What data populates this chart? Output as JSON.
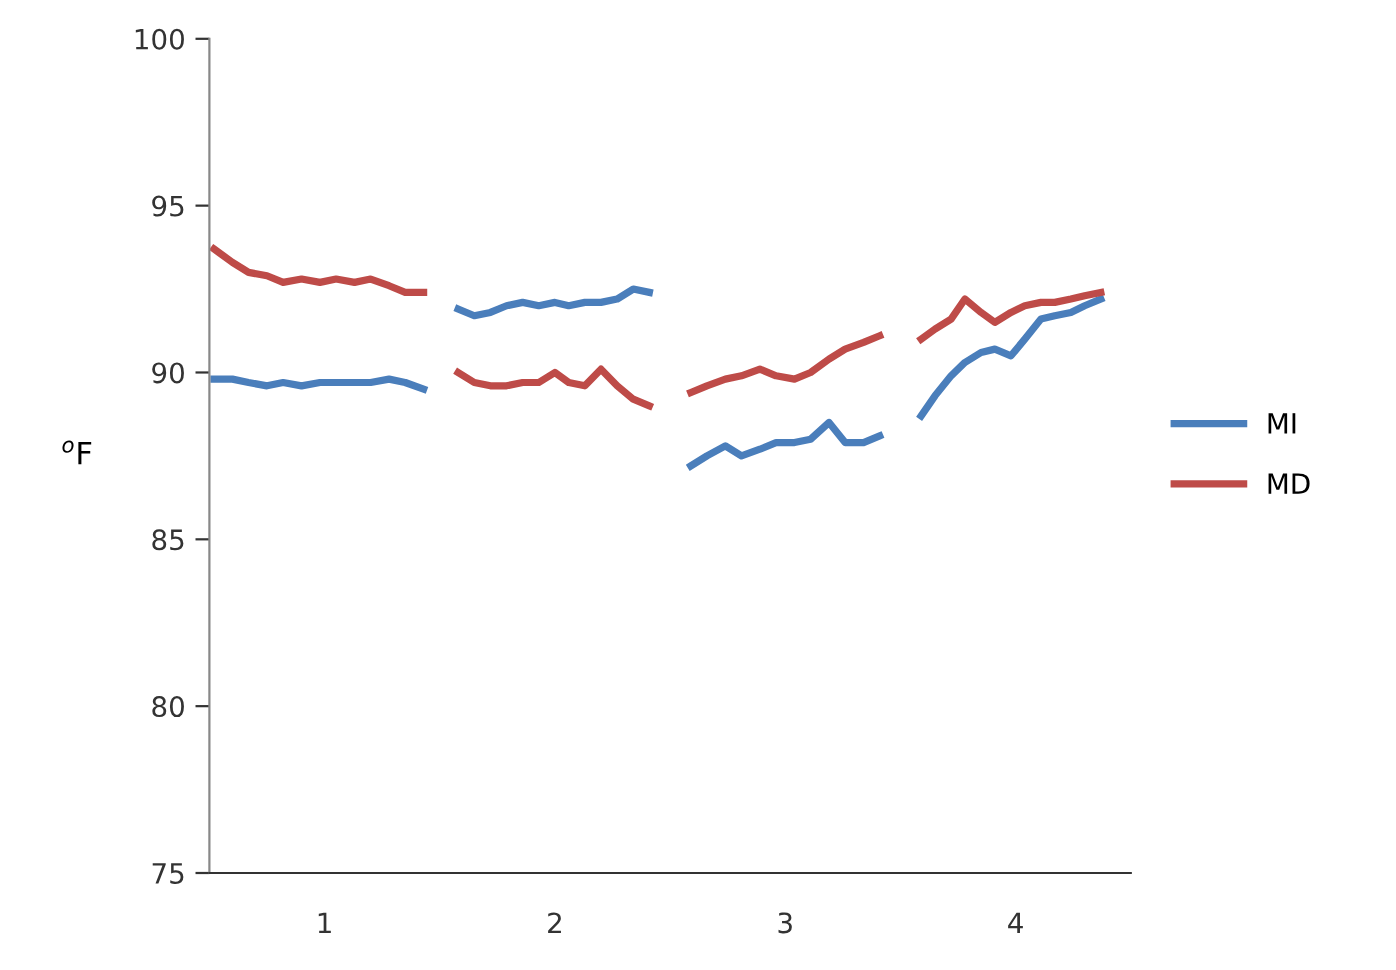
{
  "chart_data": {
    "type": "line",
    "ylabel": "$^{o}$F",
    "x": [
      0.52,
      0.6,
      0.67,
      0.75,
      0.82,
      0.9,
      0.98,
      1.05,
      1.13,
      1.2,
      1.28,
      1.35,
      1.43,
      1.5,
      1.58,
      1.65,
      1.72,
      1.79,
      1.86,
      1.93,
      2.0,
      2.06,
      2.13,
      2.2,
      2.27,
      2.34,
      2.41,
      2.5,
      2.59,
      2.66,
      2.74,
      2.81,
      2.89,
      2.96,
      3.04,
      3.11,
      3.19,
      3.26,
      3.34,
      3.41,
      3.5,
      3.59,
      3.65,
      3.72,
      3.78,
      3.85,
      3.91,
      3.98,
      4.04,
      4.11,
      4.17,
      4.24,
      4.3,
      4.37
    ],
    "series": [
      {
        "name": "MI",
        "color": "#4a7ebb",
        "values": [
          89.8,
          89.8,
          89.7,
          89.6,
          89.7,
          89.6,
          89.7,
          89.7,
          89.7,
          89.7,
          89.8,
          89.7,
          89.5,
          null,
          91.9,
          91.7,
          91.8,
          92.0,
          92.1,
          92.0,
          92.1,
          92.0,
          92.1,
          92.1,
          92.2,
          92.5,
          92.4,
          null,
          87.2,
          87.5,
          87.8,
          87.5,
          87.7,
          87.9,
          87.9,
          88.0,
          88.5,
          87.9,
          87.9,
          88.1,
          null,
          88.7,
          89.3,
          89.9,
          90.3,
          90.6,
          90.7,
          90.5,
          91.0,
          91.6,
          91.7,
          91.8,
          92.0,
          92.2
        ]
      },
      {
        "name": "MD",
        "color": "#be4b48",
        "values": [
          93.7,
          93.3,
          93.0,
          92.9,
          92.7,
          92.8,
          92.7,
          92.8,
          92.7,
          92.8,
          92.6,
          92.4,
          92.4,
          null,
          90.0,
          89.7,
          89.6,
          89.6,
          89.7,
          89.7,
          90.0,
          89.7,
          89.6,
          90.1,
          89.6,
          89.2,
          89.0,
          null,
          89.4,
          89.6,
          89.8,
          89.9,
          90.1,
          89.9,
          89.8,
          90.0,
          90.4,
          90.7,
          90.9,
          91.1,
          null,
          91.0,
          91.3,
          91.6,
          92.2,
          91.8,
          91.5,
          91.8,
          92.0,
          92.1,
          92.1,
          92.2,
          92.3,
          92.4
        ]
      }
    ],
    "xlim": [
      0.5,
      4.5
    ],
    "xticks": [
      1,
      2,
      3,
      4
    ],
    "ylim": [
      75,
      100
    ],
    "yticks": [
      75,
      80,
      85,
      90,
      95,
      100
    ],
    "grid": false,
    "legend": "right",
    "marker": "none",
    "line_style": "solid"
  }
}
